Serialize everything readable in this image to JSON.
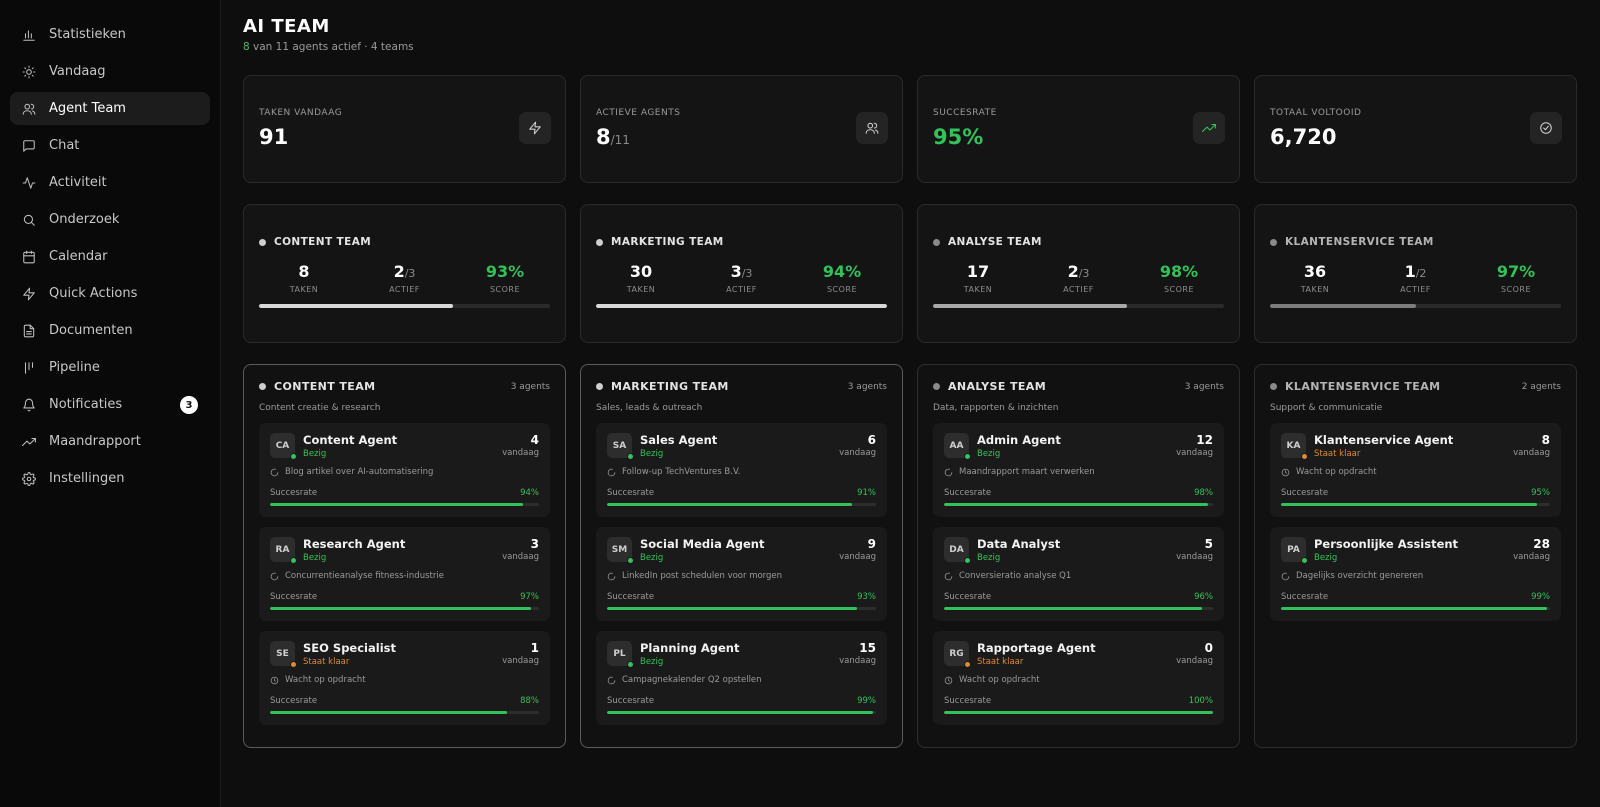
{
  "sidebar": {
    "items": [
      {
        "label": "Statistieken",
        "icon": "bar-chart-icon",
        "active": false
      },
      {
        "label": "Vandaag",
        "icon": "sun-icon",
        "active": false
      },
      {
        "label": "Agent Team",
        "icon": "users-icon",
        "active": true
      },
      {
        "label": "Chat",
        "icon": "chat-icon",
        "active": false
      },
      {
        "label": "Activiteit",
        "icon": "activity-icon",
        "active": false
      },
      {
        "label": "Onderzoek",
        "icon": "search-icon",
        "active": false
      },
      {
        "label": "Calendar",
        "icon": "calendar-icon",
        "active": false
      },
      {
        "label": "Quick Actions",
        "icon": "lightning-icon",
        "active": false
      },
      {
        "label": "Documenten",
        "icon": "document-icon",
        "active": false
      },
      {
        "label": "Pipeline",
        "icon": "pipeline-icon",
        "active": false
      },
      {
        "label": "Notificaties",
        "icon": "bell-icon",
        "active": false,
        "badge": "3"
      },
      {
        "label": "Maandrapport",
        "icon": "trend-icon",
        "active": false
      },
      {
        "label": "Instellingen",
        "icon": "gear-icon",
        "active": false
      }
    ]
  },
  "header": {
    "title": "AI TEAM",
    "active_count": "8",
    "subtitle_rest": " van 11 agents actief · 4 teams"
  },
  "stats": [
    {
      "label": "TAKEN VANDAAG",
      "value": "91",
      "sub": "",
      "icon": "lightning-icon",
      "green": false
    },
    {
      "label": "ACTIEVE AGENTS",
      "value": "8",
      "sub": "/11",
      "icon": "users-icon",
      "green": false
    },
    {
      "label": "SUCCESRATE",
      "value": "95%",
      "sub": "",
      "icon": "trend-icon",
      "green": true
    },
    {
      "label": "TOTAAL VOLTOOID",
      "value": "6,720",
      "sub": "",
      "icon": "check-circle-icon",
      "green": false
    }
  ],
  "team_labels": {
    "taken": "TAKEN",
    "actief": "ACTIEF",
    "score": "SCORE"
  },
  "teams": [
    {
      "name": "CONTENT TEAM",
      "taken": "8",
      "actief": "2",
      "actief_total": "/3",
      "score": "93%",
      "progress": 0.667,
      "shade": "bright"
    },
    {
      "name": "MARKETING TEAM",
      "taken": "30",
      "actief": "3",
      "actief_total": "/3",
      "score": "94%",
      "progress": 1.0,
      "shade": "bright"
    },
    {
      "name": "ANALYSE TEAM",
      "taken": "17",
      "actief": "2",
      "actief_total": "/3",
      "score": "98%",
      "progress": 0.667,
      "shade": "mid"
    },
    {
      "name": "KLANTENSERVICE TEAM",
      "taken": "36",
      "actief": "1",
      "actief_total": "/2",
      "score": "97%",
      "progress": 0.5,
      "shade": "dim"
    }
  ],
  "columns": [
    {
      "name": "CONTENT TEAM",
      "count": "3 agents",
      "desc": "Content creatie & research",
      "shade": "bright",
      "agents": [
        {
          "initials": "CA",
          "name": "Content Agent",
          "status": "Bezig",
          "state": "busy",
          "count": "4",
          "count_label": "vandaag",
          "task": "Blog artikel over AI-automatisering",
          "success_label": "Succesrate",
          "success": "94%",
          "rate": 0.94
        },
        {
          "initials": "RA",
          "name": "Research Agent",
          "status": "Bezig",
          "state": "busy",
          "count": "3",
          "count_label": "vandaag",
          "task": "Concurrentieanalyse fitness-industrie",
          "success_label": "Succesrate",
          "success": "97%",
          "rate": 0.97
        },
        {
          "initials": "SE",
          "name": "SEO Specialist",
          "status": "Staat klaar",
          "state": "ready",
          "count": "1",
          "count_label": "vandaag",
          "task": "Wacht op opdracht",
          "success_label": "Succesrate",
          "success": "88%",
          "rate": 0.88
        }
      ]
    },
    {
      "name": "MARKETING TEAM",
      "count": "3 agents",
      "desc": "Sales, leads & outreach",
      "shade": "bright",
      "agents": [
        {
          "initials": "SA",
          "name": "Sales Agent",
          "status": "Bezig",
          "state": "busy",
          "count": "6",
          "count_label": "vandaag",
          "task": "Follow-up TechVentures B.V.",
          "success_label": "Succesrate",
          "success": "91%",
          "rate": 0.91
        },
        {
          "initials": "SM",
          "name": "Social Media Agent",
          "status": "Bezig",
          "state": "busy",
          "count": "9",
          "count_label": "vandaag",
          "task": "LinkedIn post schedulen voor morgen",
          "success_label": "Succesrate",
          "success": "93%",
          "rate": 0.93
        },
        {
          "initials": "PL",
          "name": "Planning Agent",
          "status": "Bezig",
          "state": "busy",
          "count": "15",
          "count_label": "vandaag",
          "task": "Campagnekalender Q2 opstellen",
          "success_label": "Succesrate",
          "success": "99%",
          "rate": 0.99
        }
      ]
    },
    {
      "name": "ANALYSE TEAM",
      "count": "3 agents",
      "desc": "Data, rapporten & inzichten",
      "shade": "mid",
      "agents": [
        {
          "initials": "AA",
          "name": "Admin Agent",
          "status": "Bezig",
          "state": "busy",
          "count": "12",
          "count_label": "vandaag",
          "task": "Maandrapport maart verwerken",
          "success_label": "Succesrate",
          "success": "98%",
          "rate": 0.98
        },
        {
          "initials": "DA",
          "name": "Data Analyst",
          "status": "Bezig",
          "state": "busy",
          "count": "5",
          "count_label": "vandaag",
          "task": "Conversieratio analyse Q1",
          "success_label": "Succesrate",
          "success": "96%",
          "rate": 0.96
        },
        {
          "initials": "RG",
          "name": "Rapportage Agent",
          "status": "Staat klaar",
          "state": "ready",
          "count": "0",
          "count_label": "vandaag",
          "task": "Wacht op opdracht",
          "success_label": "Succesrate",
          "success": "100%",
          "rate": 1.0
        }
      ]
    },
    {
      "name": "KLANTENSERVICE TEAM",
      "count": "2 agents",
      "desc": "Support & communicatie",
      "shade": "dim",
      "agents": [
        {
          "initials": "KA",
          "name": "Klantenservice Agent",
          "status": "Staat klaar",
          "state": "ready",
          "count": "8",
          "count_label": "vandaag",
          "task": "Wacht op opdracht",
          "success_label": "Succesrate",
          "success": "95%",
          "rate": 0.95
        },
        {
          "initials": "PA",
          "name": "Persoonlijke Assistent",
          "status": "Bezig",
          "state": "busy",
          "count": "28",
          "count_label": "vandaag",
          "task": "Dagelijks overzicht genereren",
          "success_label": "Succesrate",
          "success": "99%",
          "rate": 0.99
        }
      ]
    }
  ]
}
